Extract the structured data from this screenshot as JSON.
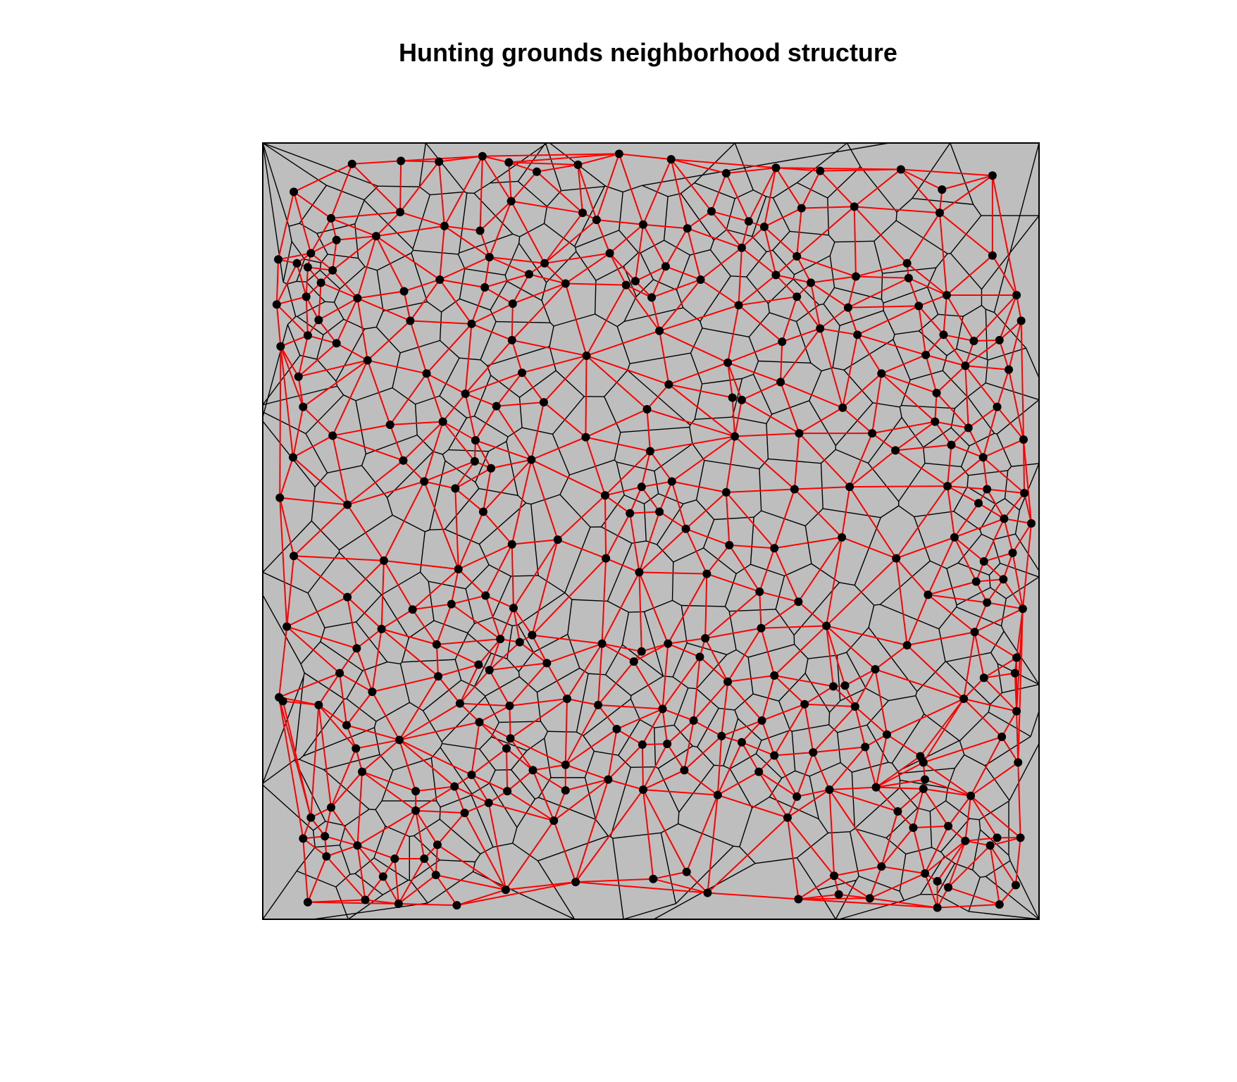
{
  "title": "Hunting grounds neighborhood structure",
  "colors": {
    "region_fill": "#bebebe",
    "cell_border": "#000000",
    "neighbor_link": "#ff0000",
    "centroid": "#000000",
    "background": "#ffffff"
  },
  "legend": "none",
  "axes": "none"
}
